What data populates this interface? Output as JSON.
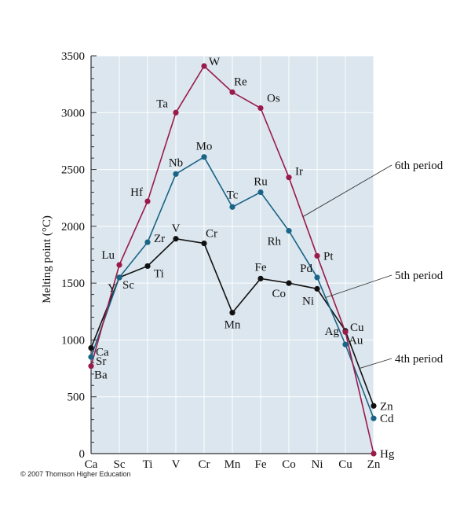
{
  "chart_data": {
    "type": "line",
    "ylabel": "Melting point (°C)",
    "xlabel": "",
    "ylim": [
      0,
      3500
    ],
    "yticks": [
      0,
      500,
      1000,
      1500,
      2000,
      2500,
      3000,
      3500
    ],
    "categories": [
      "Ca",
      "Sc",
      "Ti",
      "V",
      "Cr",
      "Mn",
      "Fe",
      "Co",
      "Ni",
      "Cu",
      "Zn"
    ],
    "grid": true,
    "colors": {
      "background": "#dbe6ee",
      "grid": "#ffffff",
      "axis": "#333333",
      "period4": "#111111",
      "period5": "#1a6487",
      "period6": "#9a1a4a"
    },
    "series": [
      {
        "name": "4th period",
        "key": "period4",
        "elements": [
          "Ca",
          "Sc",
          "Ti",
          "V",
          "Cr",
          "Mn",
          "Fe",
          "Co",
          "Ni",
          "Cu",
          "Zn"
        ],
        "values": [
          930,
          1550,
          1650,
          1890,
          1850,
          1240,
          1540,
          1500,
          1450,
          1080,
          420
        ]
      },
      {
        "name": "5th period",
        "key": "period5",
        "elements": [
          "Sr",
          "Y",
          "Zr",
          "Nb",
          "Mo",
          "Tc",
          "Ru",
          "Rh",
          "Pd",
          "Ag",
          "Cd"
        ],
        "values": [
          850,
          1550,
          1860,
          2460,
          2610,
          2170,
          2300,
          1960,
          1550,
          960,
          310
        ]
      },
      {
        "name": "6th period",
        "key": "period6",
        "elements": [
          "Ba",
          "Lu",
          "Hf",
          "Ta",
          "W",
          "Re",
          "Os",
          "Ir",
          "Pt",
          "Au",
          "Hg"
        ],
        "values": [
          770,
          1660,
          2220,
          3000,
          3410,
          3180,
          3040,
          2430,
          1740,
          1070,
          0
        ]
      }
    ]
  },
  "copyright": "© 2007 Thomson Higher Education"
}
